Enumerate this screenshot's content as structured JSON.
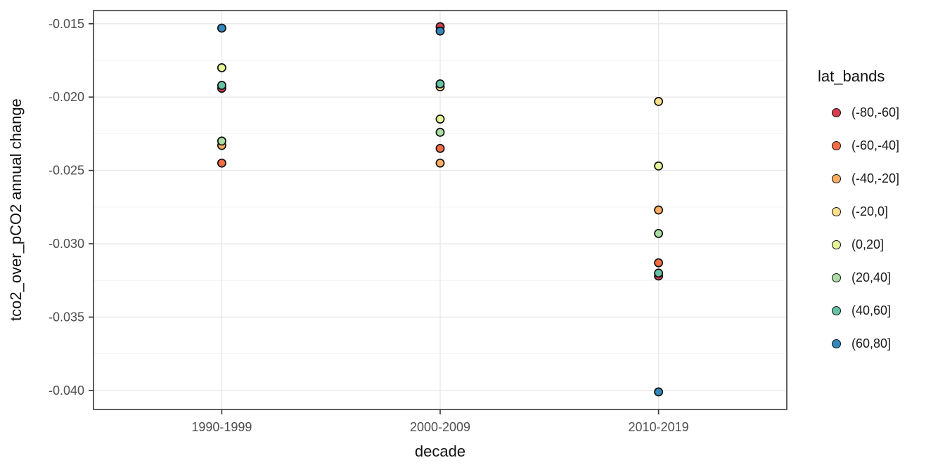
{
  "chart_data": {
    "type": "scatter",
    "title": "",
    "xlabel": "decade",
    "ylabel": "tco2_over_pCO2 annual change",
    "categories": [
      "1990-1999",
      "2000-2009",
      "2010-2019"
    ],
    "series": [
      {
        "name": "(-80,-60]",
        "color": "#d53e4f",
        "values": [
          -0.0194,
          -0.0152,
          -0.0322
        ]
      },
      {
        "name": "(-60,-40]",
        "color": "#f46d43",
        "values": [
          -0.0245,
          -0.0235,
          -0.0313
        ]
      },
      {
        "name": "(-40,-20]",
        "color": "#fdae61",
        "values": [
          -0.0233,
          -0.0245,
          -0.0277
        ]
      },
      {
        "name": "(-20,0]",
        "color": "#fee08b",
        "values": [
          null,
          -0.0193,
          -0.0203
        ]
      },
      {
        "name": "(0,20]",
        "color": "#e6f598",
        "values": [
          -0.018,
          -0.0215,
          -0.0247
        ]
      },
      {
        "name": "(20,40]",
        "color": "#abdda4",
        "values": [
          -0.023,
          -0.0224,
          -0.0293
        ]
      },
      {
        "name": "(40,60]",
        "color": "#66c2a5",
        "values": [
          -0.0192,
          -0.0191,
          -0.032
        ]
      },
      {
        "name": "(60,80]",
        "color": "#3288bd",
        "values": [
          -0.0153,
          -0.0155,
          -0.0401
        ]
      }
    ],
    "legend_title": "lat_bands",
    "legend_position": "right",
    "y_tick_labels": [
      "-0.015",
      "-0.020",
      "-0.025",
      "-0.030",
      "-0.035",
      "-0.040"
    ],
    "y_tick_values": [
      -0.015,
      -0.02,
      -0.025,
      -0.03,
      -0.035,
      -0.04
    ],
    "y_minor_values": [
      -0.0175,
      -0.0225,
      -0.0275,
      -0.0325,
      -0.0375
    ],
    "ylim": [
      -0.0413,
      -0.0141
    ],
    "grid": "major+minor horizontal",
    "point_style": "filled circle with black outline",
    "theme": {
      "background": "#ffffff",
      "panel_border": "#3a3a3a",
      "major_grid": "#e8e8e8",
      "minor_grid": "#f3f3f3",
      "tick_color": "#333333",
      "tick_label_color": "#4d4d4d",
      "title_color": "#111111"
    }
  }
}
